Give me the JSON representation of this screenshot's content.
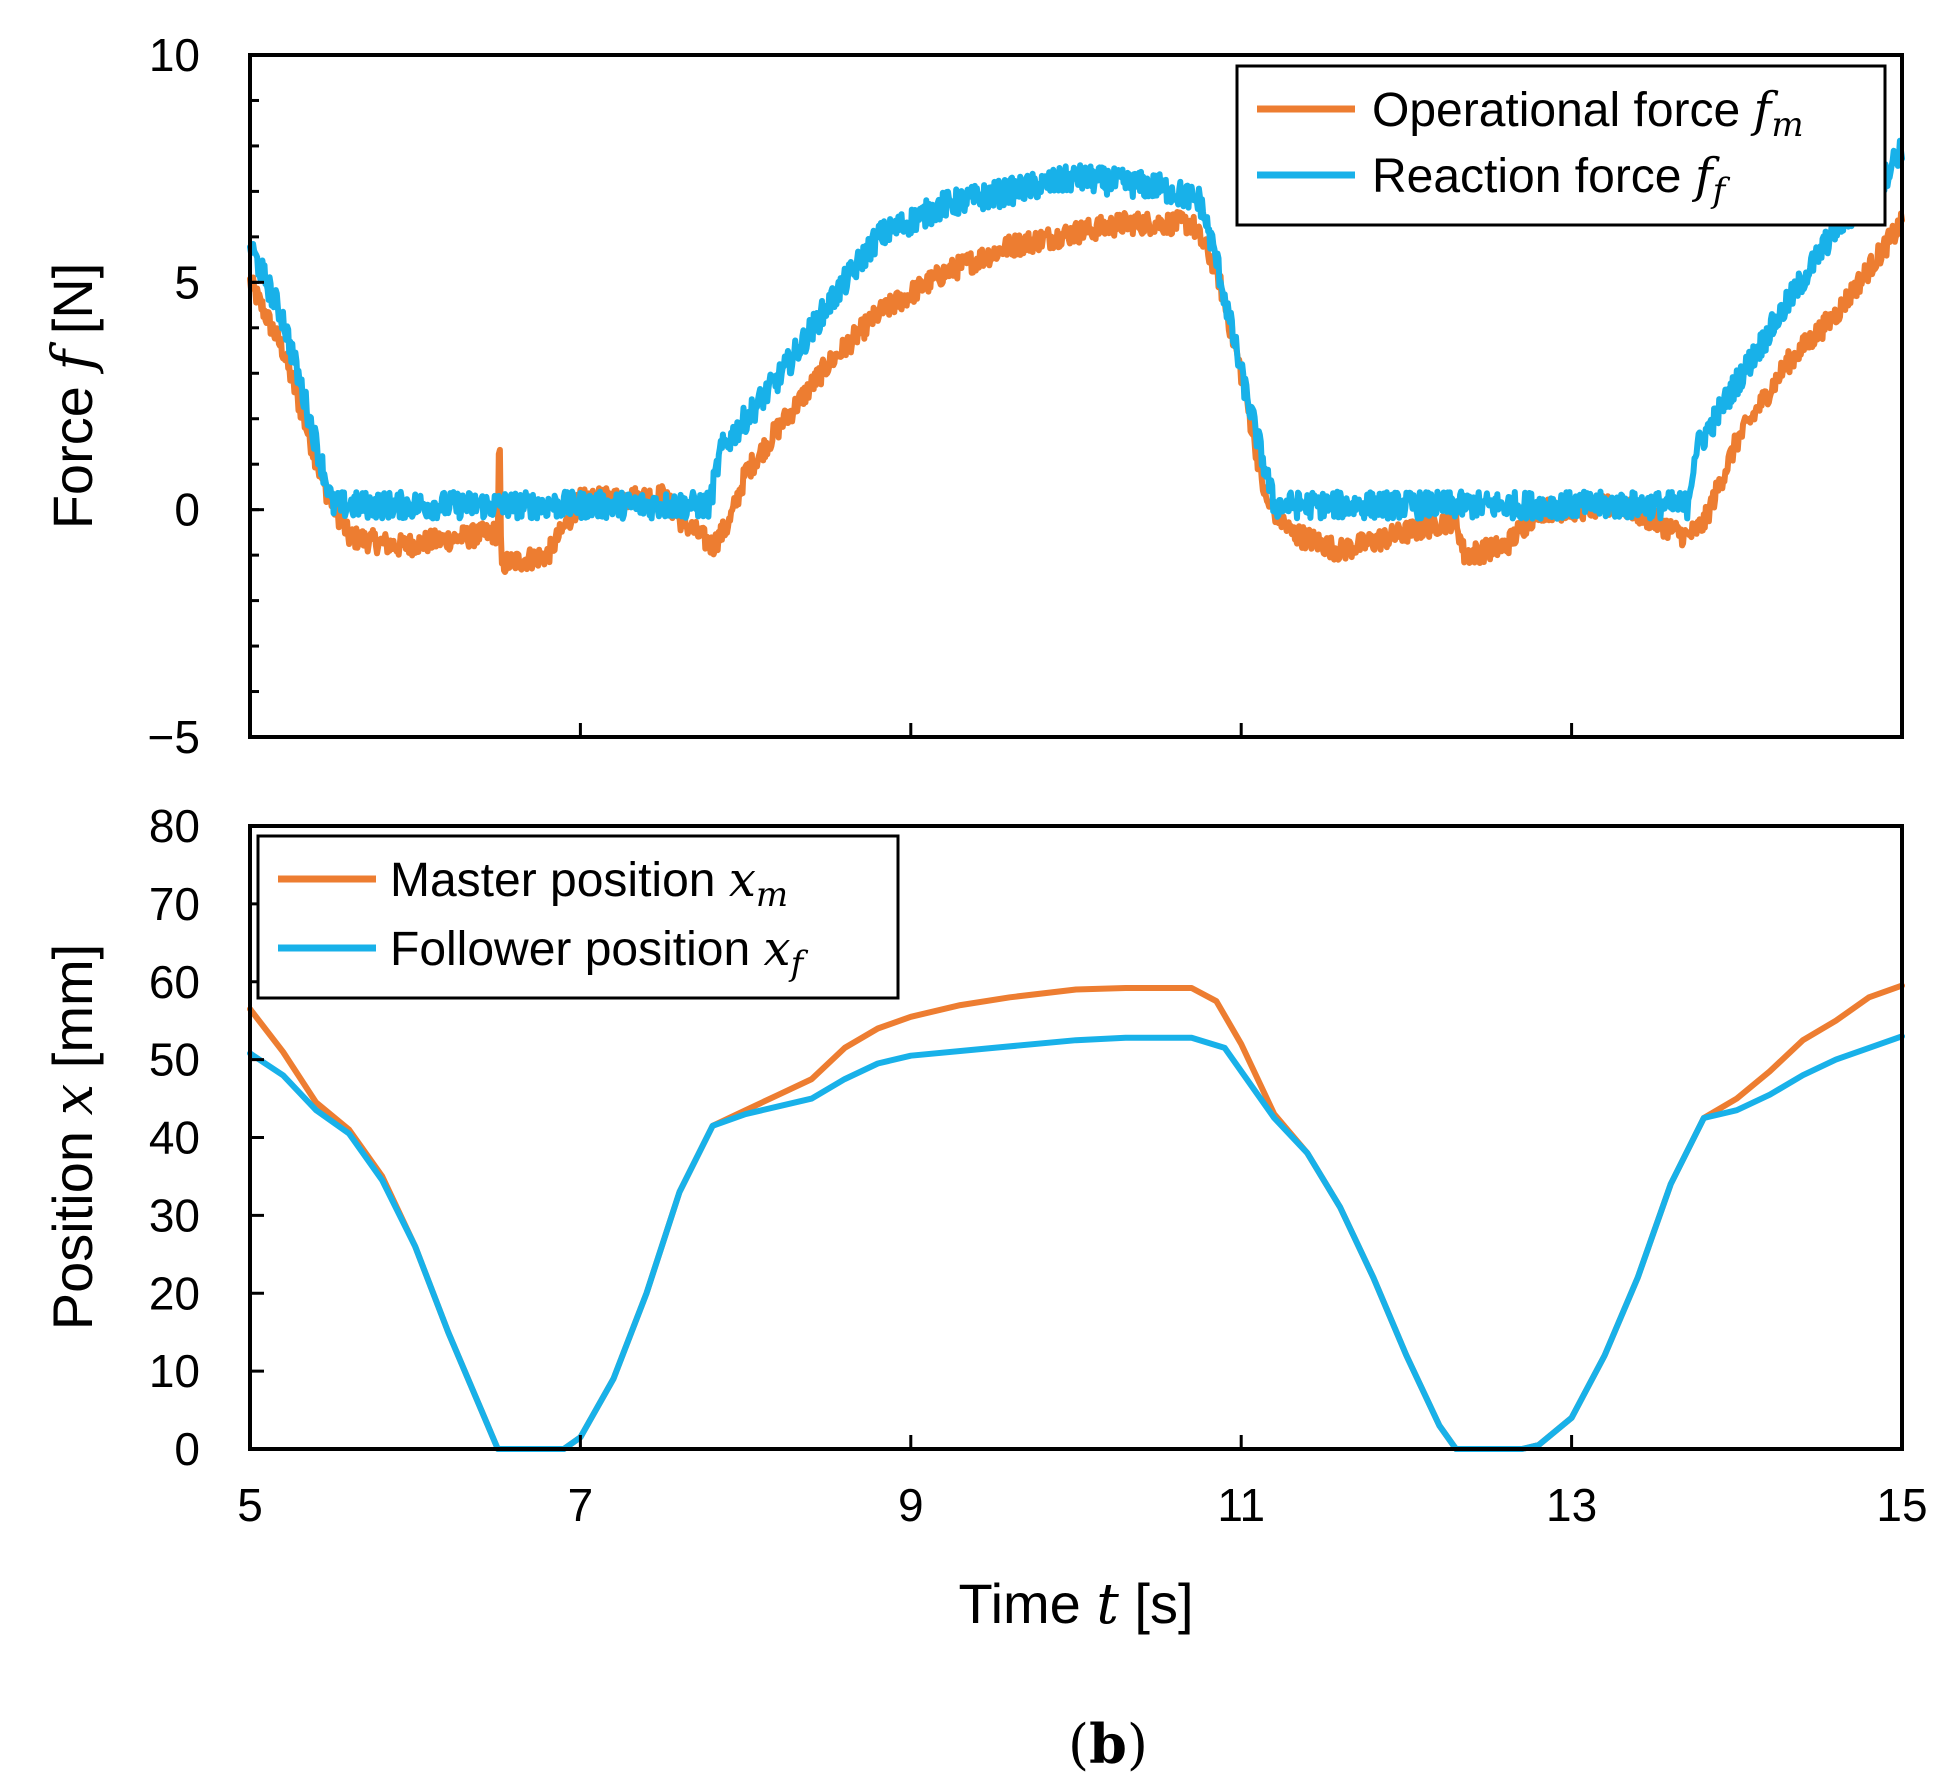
{
  "colors": {
    "orange": "#ED7D31",
    "blue": "#18B1E9",
    "axis": "#000000"
  },
  "panel_label": {
    "open": "(",
    "letter": "b",
    "close": ")"
  },
  "chart_data": [
    {
      "type": "line",
      "name": "force",
      "ylabel": {
        "text": "Force ",
        "symbol": "f",
        "unit": " [N]"
      },
      "xlim": [
        5,
        15
      ],
      "ylim": [
        -5,
        10
      ],
      "xticks": [
        5,
        7,
        9,
        11,
        13,
        15
      ],
      "yticks": [
        {
          "v": -5,
          "label": "−5"
        },
        {
          "v": 0,
          "label": "0"
        },
        {
          "v": 5,
          "label": "5"
        },
        {
          "v": 10,
          "label": "10"
        }
      ],
      "yminor_step": 1,
      "legend_position": "top-right",
      "series": [
        {
          "name": "Operational force",
          "symbol": "f",
          "sub": "m",
          "color": "#ED7D31",
          "noise": 0.25,
          "points": [
            [
              5.0,
              5.0
            ],
            [
              5.2,
              3.5
            ],
            [
              5.45,
              0.5
            ],
            [
              5.6,
              -0.6
            ],
            [
              5.9,
              -0.8
            ],
            [
              6.3,
              -0.6
            ],
            [
              6.5,
              -0.5
            ],
            [
              6.51,
              2.0
            ],
            [
              6.52,
              -1.2
            ],
            [
              6.8,
              -1.0
            ],
            [
              7.0,
              0.2
            ],
            [
              7.5,
              0.3
            ],
            [
              7.6,
              -0.2
            ],
            [
              7.8,
              -0.8
            ],
            [
              7.9,
              -0.3
            ],
            [
              8.0,
              0.8
            ],
            [
              8.2,
              1.8
            ],
            [
              8.5,
              3.2
            ],
            [
              8.8,
              4.3
            ],
            [
              9.2,
              5.2
            ],
            [
              9.6,
              5.8
            ],
            [
              10.0,
              6.1
            ],
            [
              10.3,
              6.3
            ],
            [
              10.7,
              6.3
            ],
            [
              10.85,
              5.3
            ],
            [
              11.0,
              3.0
            ],
            [
              11.15,
              0.2
            ],
            [
              11.3,
              -0.5
            ],
            [
              11.6,
              -0.9
            ],
            [
              11.9,
              -0.6
            ],
            [
              12.1,
              -0.4
            ],
            [
              12.3,
              -0.2
            ],
            [
              12.35,
              -1.0
            ],
            [
              12.6,
              -0.8
            ],
            [
              12.8,
              0.0
            ],
            [
              13.0,
              0.0
            ],
            [
              13.3,
              0.1
            ],
            [
              13.7,
              -0.6
            ],
            [
              13.8,
              -0.3
            ],
            [
              14.0,
              1.5
            ],
            [
              14.3,
              3.2
            ],
            [
              14.6,
              4.3
            ],
            [
              14.9,
              5.8
            ],
            [
              15.0,
              6.3
            ]
          ]
        },
        {
          "name": "Reaction force",
          "symbol": "f",
          "sub": "f",
          "color": "#18B1E9",
          "noise": 0.3,
          "points": [
            [
              5.0,
              5.8
            ],
            [
              5.2,
              4.2
            ],
            [
              5.5,
              0.1
            ],
            [
              6.0,
              0.1
            ],
            [
              7.0,
              0.1
            ],
            [
              7.78,
              0.1
            ],
            [
              7.85,
              1.3
            ],
            [
              8.0,
              2.0
            ],
            [
              8.2,
              2.9
            ],
            [
              8.5,
              4.5
            ],
            [
              8.8,
              6.0
            ],
            [
              9.2,
              6.7
            ],
            [
              9.6,
              7.0
            ],
            [
              10.0,
              7.3
            ],
            [
              10.5,
              7.1
            ],
            [
              10.75,
              6.8
            ],
            [
              10.85,
              5.5
            ],
            [
              11.0,
              3.0
            ],
            [
              11.2,
              0.1
            ],
            [
              12.0,
              0.1
            ],
            [
              13.0,
              0.1
            ],
            [
              13.7,
              0.1
            ],
            [
              13.75,
              1.3
            ],
            [
              14.0,
              2.8
            ],
            [
              14.3,
              4.5
            ],
            [
              14.6,
              6.2
            ],
            [
              14.85,
              7.0
            ],
            [
              15.0,
              8.0
            ]
          ]
        }
      ]
    },
    {
      "type": "line",
      "name": "position",
      "ylabel": {
        "text": "Position ",
        "symbol": "x",
        "unit": " [mm]"
      },
      "xlabel": {
        "text": "Time ",
        "symbol": "t",
        "unit": " [s]"
      },
      "xlim": [
        5,
        15
      ],
      "ylim": [
        0,
        80
      ],
      "xticks": [
        5,
        7,
        9,
        11,
        13,
        15
      ],
      "yticks": [
        {
          "v": 0,
          "label": "0"
        },
        {
          "v": 10,
          "label": "10"
        },
        {
          "v": 20,
          "label": "20"
        },
        {
          "v": 30,
          "label": "30"
        },
        {
          "v": 40,
          "label": "40"
        },
        {
          "v": 50,
          "label": "50"
        },
        {
          "v": 60,
          "label": "60"
        },
        {
          "v": 70,
          "label": "70"
        },
        {
          "v": 80,
          "label": "80"
        }
      ],
      "legend_position": "top-left",
      "series": [
        {
          "name": "Master position",
          "symbol": "x",
          "sub": "m",
          "color": "#ED7D31",
          "noise": 0,
          "points": [
            [
              5.0,
              56.5
            ],
            [
              5.2,
              51.0
            ],
            [
              5.4,
              44.5
            ],
            [
              5.6,
              41.0
            ],
            [
              5.8,
              35.0
            ],
            [
              6.0,
              26.0
            ],
            [
              6.2,
              15.0
            ],
            [
              6.4,
              5.0
            ],
            [
              6.5,
              0.0
            ],
            [
              6.9,
              0.0
            ],
            [
              7.0,
              1.5
            ],
            [
              7.2,
              9.0
            ],
            [
              7.4,
              20.0
            ],
            [
              7.6,
              33.0
            ],
            [
              7.8,
              41.5
            ],
            [
              8.0,
              43.5
            ],
            [
              8.2,
              45.5
            ],
            [
              8.4,
              47.5
            ],
            [
              8.6,
              51.5
            ],
            [
              8.8,
              54.0
            ],
            [
              9.0,
              55.5
            ],
            [
              9.3,
              57.0
            ],
            [
              9.6,
              58.0
            ],
            [
              10.0,
              59.0
            ],
            [
              10.3,
              59.2
            ],
            [
              10.7,
              59.2
            ],
            [
              10.85,
              57.5
            ],
            [
              11.0,
              52.0
            ],
            [
              11.2,
              43.0
            ],
            [
              11.4,
              38.0
            ],
            [
              11.6,
              31.0
            ],
            [
              11.8,
              22.0
            ],
            [
              12.0,
              12.0
            ],
            [
              12.2,
              3.0
            ],
            [
              12.3,
              0.0
            ],
            [
              12.7,
              0.0
            ],
            [
              12.8,
              0.5
            ],
            [
              13.0,
              4.0
            ],
            [
              13.2,
              12.0
            ],
            [
              13.4,
              22.0
            ],
            [
              13.6,
              34.0
            ],
            [
              13.8,
              42.5
            ],
            [
              14.0,
              45.0
            ],
            [
              14.2,
              48.5
            ],
            [
              14.4,
              52.5
            ],
            [
              14.6,
              55.0
            ],
            [
              14.8,
              58.0
            ],
            [
              15.0,
              59.5
            ]
          ]
        },
        {
          "name": "Follower position",
          "symbol": "x",
          "sub": "f",
          "color": "#18B1E9",
          "noise": 0,
          "points": [
            [
              5.0,
              50.8
            ],
            [
              5.2,
              48.0
            ],
            [
              5.4,
              43.5
            ],
            [
              5.6,
              40.5
            ],
            [
              5.8,
              34.5
            ],
            [
              6.0,
              26.0
            ],
            [
              6.2,
              15.0
            ],
            [
              6.4,
              5.0
            ],
            [
              6.5,
              0.0
            ],
            [
              6.9,
              0.0
            ],
            [
              7.0,
              1.5
            ],
            [
              7.2,
              9.0
            ],
            [
              7.4,
              20.0
            ],
            [
              7.6,
              33.0
            ],
            [
              7.8,
              41.5
            ],
            [
              8.0,
              43.0
            ],
            [
              8.2,
              44.0
            ],
            [
              8.4,
              45.0
            ],
            [
              8.6,
              47.5
            ],
            [
              8.8,
              49.5
            ],
            [
              9.0,
              50.5
            ],
            [
              9.5,
              51.5
            ],
            [
              10.0,
              52.5
            ],
            [
              10.3,
              52.8
            ],
            [
              10.7,
              52.8
            ],
            [
              10.9,
              51.5
            ],
            [
              11.05,
              47.0
            ],
            [
              11.2,
              42.5
            ],
            [
              11.4,
              38.0
            ],
            [
              11.6,
              31.0
            ],
            [
              11.8,
              22.0
            ],
            [
              12.0,
              12.0
            ],
            [
              12.2,
              3.0
            ],
            [
              12.3,
              0.0
            ],
            [
              12.7,
              0.0
            ],
            [
              12.8,
              0.5
            ],
            [
              13.0,
              4.0
            ],
            [
              13.2,
              12.0
            ],
            [
              13.4,
              22.0
            ],
            [
              13.6,
              34.0
            ],
            [
              13.8,
              42.5
            ],
            [
              14.0,
              43.5
            ],
            [
              14.2,
              45.5
            ],
            [
              14.4,
              48.0
            ],
            [
              14.6,
              50.0
            ],
            [
              14.8,
              51.5
            ],
            [
              15.0,
              53.0
            ]
          ]
        }
      ]
    }
  ]
}
